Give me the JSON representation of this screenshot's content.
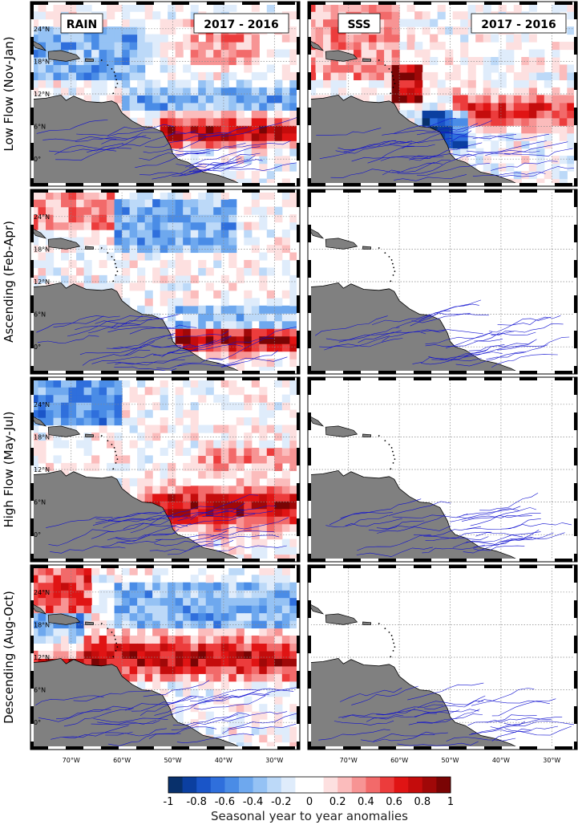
{
  "chart_data": {
    "type": "heatmap",
    "variables": [
      "RAIN",
      "SSS"
    ],
    "comparison": "2017 - 2016",
    "rows": [
      "Low Flow (Nov-Jan)",
      "Ascending (Feb-Apr)",
      "High Flow (May-Jul)",
      "Descending (Aug-Oct)"
    ],
    "lat_ticks": [
      "24°N",
      "18°N",
      "12°N",
      "6°N",
      "0°"
    ],
    "lat_values": [
      24,
      18,
      12,
      6,
      0
    ],
    "lon_ticks": [
      "70°W",
      "60°W",
      "50°W",
      "40°W",
      "30°W"
    ],
    "lon_values": [
      -70,
      -60,
      -50,
      -40,
      -30
    ],
    "lon_range": [
      -78,
      -25
    ],
    "lat_range": [
      -5,
      29
    ],
    "sss_has_data": [
      true,
      false,
      false,
      false
    ],
    "colorbar": {
      "min": -1,
      "max": 1,
      "ticks": [
        "-1",
        "-0.8",
        "-0.6",
        "-0.4",
        "-0.2",
        "0",
        "0.2",
        "0.4",
        "0.6",
        "0.8",
        "1"
      ],
      "label": "Seasonal year to year anomalies",
      "colors": [
        "#08306b",
        "#0b3fa0",
        "#1a55c8",
        "#2f6fdc",
        "#4a8ce6",
        "#6ea8ee",
        "#95c2f4",
        "#bcd9f8",
        "#dfecfb",
        "#ffffff",
        "#ffffff",
        "#fde0e0",
        "#fbbcbc",
        "#f79494",
        "#f26a6a",
        "#ec3c3c",
        "#e01414",
        "#c40c0c",
        "#a00808",
        "#7a0404"
      ]
    },
    "grid": true,
    "land_color": "#808080",
    "river_color": "#1010d0"
  }
}
